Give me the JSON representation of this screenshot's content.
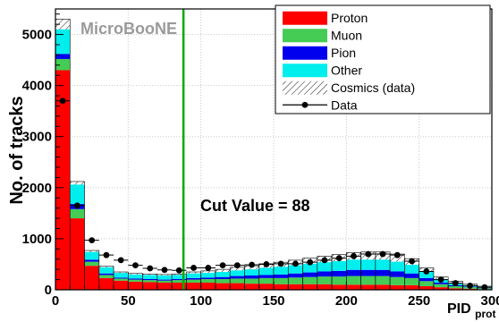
{
  "chart_data": {
    "type": "bar",
    "stacked": true,
    "watermark": "MicroBooNE",
    "xlabel": "PID",
    "xlabel_sub": "prot",
    "ylabel": "No. of tracks",
    "xlim": [
      0,
      300
    ],
    "ylim": [
      0,
      5500
    ],
    "xticks": [
      0,
      50,
      100,
      150,
      200,
      250,
      300
    ],
    "yticks": [
      0,
      1000,
      2000,
      3000,
      4000,
      5000
    ],
    "grid": true,
    "bin_width": 10,
    "bin_edges": [
      0,
      10,
      20,
      30,
      40,
      50,
      60,
      70,
      80,
      90,
      100,
      110,
      120,
      130,
      140,
      150,
      160,
      170,
      180,
      190,
      200,
      210,
      220,
      230,
      240,
      250,
      260,
      270,
      280,
      290,
      300
    ],
    "series": [
      {
        "name": "Proton",
        "color": "#ff0000",
        "values": [
          4300,
          1400,
          470,
          230,
          180,
          160,
          150,
          140,
          140,
          140,
          140,
          130,
          130,
          120,
          120,
          110,
          110,
          110,
          110,
          100,
          100,
          100,
          100,
          90,
          90,
          70,
          50,
          30,
          20,
          10
        ]
      },
      {
        "name": "Muon",
        "color": "#44cc55",
        "values": [
          220,
          180,
          80,
          60,
          40,
          40,
          40,
          40,
          50,
          60,
          70,
          80,
          90,
          100,
          110,
          120,
          130,
          140,
          150,
          160,
          170,
          170,
          170,
          160,
          140,
          100,
          60,
          40,
          30,
          20
        ]
      },
      {
        "name": "Pion",
        "color": "#0000ee",
        "values": [
          100,
          100,
          40,
          30,
          20,
          20,
          20,
          20,
          20,
          30,
          30,
          40,
          50,
          60,
          60,
          70,
          80,
          90,
          100,
          110,
          120,
          120,
          120,
          110,
          90,
          60,
          30,
          20,
          10,
          10
        ]
      },
      {
        "name": "Other",
        "color": "#00eeee",
        "values": [
          480,
          380,
          150,
          120,
          90,
          80,
          80,
          80,
          80,
          90,
          90,
          100,
          110,
          120,
          140,
          150,
          160,
          170,
          180,
          190,
          200,
          200,
          200,
          190,
          170,
          120,
          70,
          50,
          30,
          20
        ]
      },
      {
        "name": "Cosmics (data)",
        "pattern": "hatch",
        "values": [
          200,
          60,
          30,
          20,
          20,
          20,
          20,
          20,
          20,
          30,
          40,
          50,
          60,
          70,
          80,
          90,
          100,
          110,
          120,
          130,
          140,
          150,
          150,
          150,
          120,
          80,
          40,
          30,
          20,
          10
        ]
      }
    ],
    "data_points": {
      "name": "Data",
      "x": [
        5,
        15,
        25,
        35,
        45,
        55,
        65,
        75,
        85,
        95,
        105,
        115,
        125,
        135,
        145,
        155,
        165,
        175,
        185,
        195,
        205,
        215,
        225,
        235,
        245,
        255,
        265,
        275,
        285,
        295
      ],
      "y": [
        3700,
        1650,
        970,
        680,
        580,
        480,
        420,
        390,
        380,
        430,
        430,
        480,
        480,
        490,
        500,
        510,
        510,
        540,
        580,
        620,
        660,
        700,
        700,
        680,
        560,
        360,
        200,
        130,
        80,
        50
      ]
    },
    "annotations": [
      {
        "text": "Cut Value = 88",
        "x": 88,
        "type": "vertical-line",
        "color": "#00aa00"
      }
    ],
    "legend_position": "top-right",
    "legend": [
      {
        "label": "Proton",
        "kind": "fill",
        "color": "#ff0000"
      },
      {
        "label": "Muon",
        "kind": "fill",
        "color": "#44cc55"
      },
      {
        "label": "Pion",
        "kind": "fill",
        "color": "#0000ee"
      },
      {
        "label": "Other",
        "kind": "fill",
        "color": "#00eeee"
      },
      {
        "label": "Cosmics (data)",
        "kind": "hatch",
        "color": "#000000"
      },
      {
        "label": "Data",
        "kind": "marker",
        "color": "#000000"
      }
    ]
  }
}
